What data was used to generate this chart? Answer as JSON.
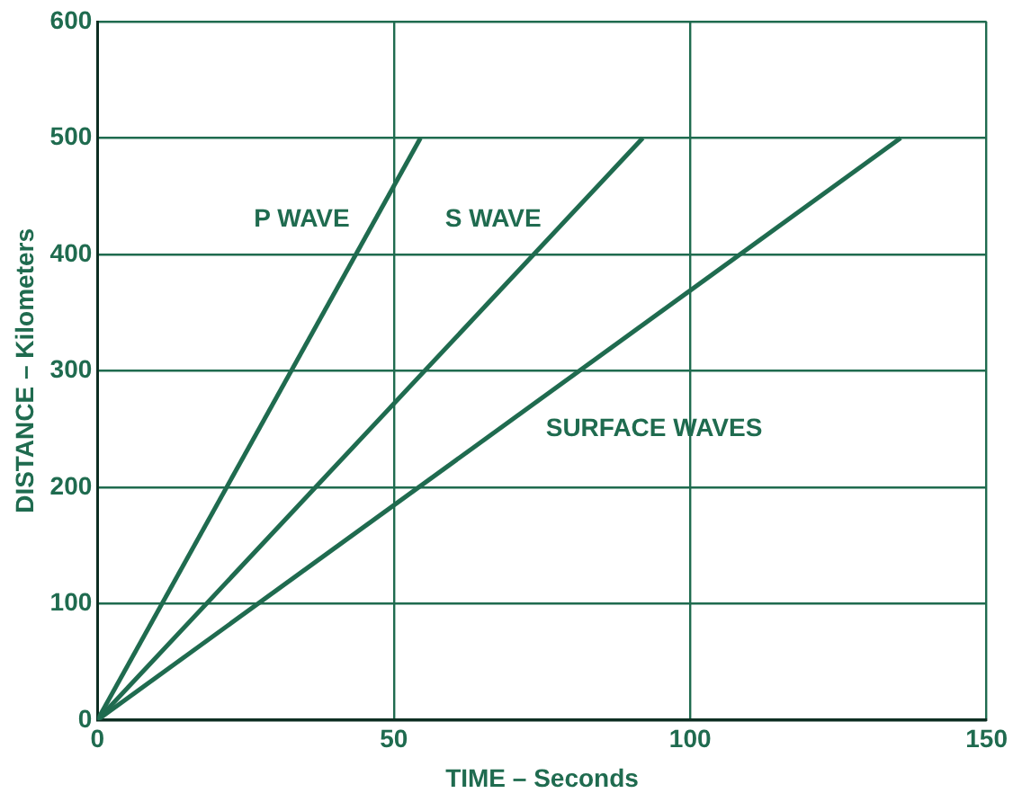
{
  "chart_data": {
    "type": "line",
    "xlabel": "TIME – Seconds",
    "ylabel": "DISTANCE – Kilometers",
    "series": [
      {
        "name": "P WAVE",
        "color": "#1f6b4f",
        "x": [
          0,
          54.5
        ],
        "values": [
          0,
          500
        ]
      },
      {
        "name": "S WAVE",
        "color": "#1f6b4f",
        "x": [
          0,
          92
        ],
        "values": [
          0,
          500
        ]
      },
      {
        "name": "SURFACE WAVES",
        "color": "#1f6b4f",
        "x": [
          0,
          135.5
        ],
        "values": [
          0,
          500
        ]
      }
    ],
    "xlim": [
      0,
      150
    ],
    "xticks": [
      0,
      50,
      100,
      150
    ],
    "ylim": [
      0,
      600
    ],
    "yticks": [
      0,
      100,
      200,
      300,
      400,
      500,
      600
    ],
    "grid": true,
    "legend": false,
    "marker": "none",
    "line_style": "solid"
  }
}
